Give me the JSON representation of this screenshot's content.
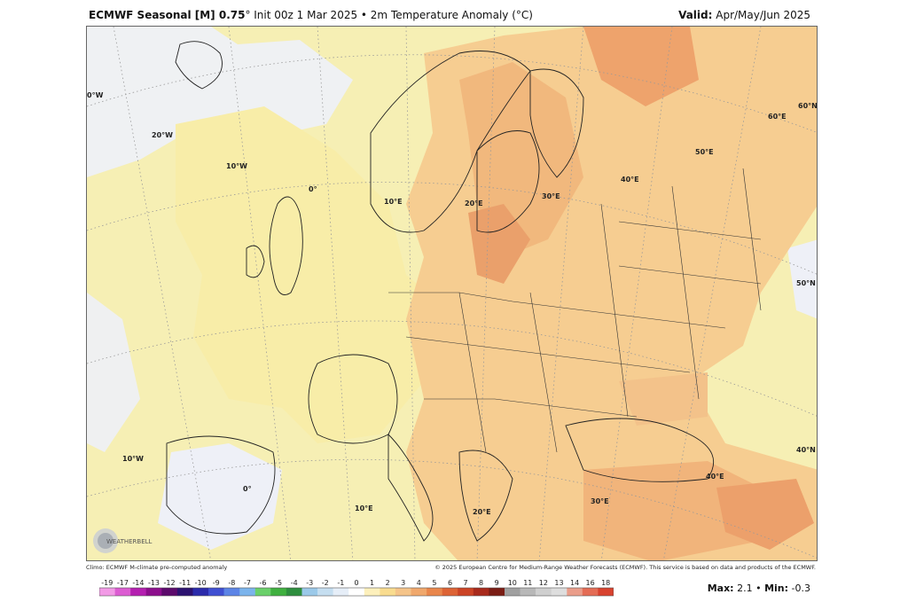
{
  "header": {
    "model": "ECMWF Seasonal [M] 0.75",
    "deg": "°",
    "init": " Init 00z 1 Mar 2025 • 2m Temperature Anomaly (°C)",
    "valid_label": "Valid:",
    "valid_value": " Apr/May/Jun 2025"
  },
  "map": {
    "gridline_labels": {
      "lon": [
        "0°W",
        "20°W",
        "10°W",
        "0°",
        "10°E",
        "20°E",
        "30°E",
        "40°E",
        "50°E",
        "60°E",
        "10°W",
        "0°",
        "10°E",
        "20°E",
        "30°E",
        "40°E"
      ],
      "lat": [
        "60°N",
        "50°N",
        "40°N"
      ]
    },
    "colors": {
      "ocean_neutral": "#f5f1c2",
      "land_warm_1": "#f7e6a8",
      "anomaly_1": "#f5c489",
      "anomaly_2": "#f0b47a",
      "anomaly_3": "#e99f67",
      "cool": "#eef0f6",
      "border": "#222222"
    }
  },
  "footer": {
    "climo": "Climo: ECMWF M-climate pre-computed anomaly",
    "copyright": "© 2025 European Centre for Medium-Range Weather Forecasts (ECMWF). This service is based on data and products of the ECMWF."
  },
  "colorbar": {
    "labels": [
      "-19",
      "-17",
      "-14",
      "-13",
      "-12",
      "-11",
      "-10",
      "-9",
      "-8",
      "-7",
      "-6",
      "-5",
      "-4",
      "-3",
      "-2",
      "-1",
      "0",
      "1",
      "2",
      "3",
      "4",
      "5",
      "6",
      "7",
      "8",
      "9",
      "10",
      "11",
      "12",
      "13",
      "14",
      "16",
      "18"
    ],
    "colors": [
      "#f29ae6",
      "#dc5cd2",
      "#b41fb0",
      "#8c0e8c",
      "#5c0a6c",
      "#2c1270",
      "#2b2bab",
      "#3f4fd2",
      "#5c84e6",
      "#7bb4ec",
      "#6ad06a",
      "#3fb03f",
      "#2e8e3e",
      "#9bc9e9",
      "#c5def0",
      "#e6eef8",
      "#ffffff",
      "#fdf0bc",
      "#f9dc8f",
      "#f5c489",
      "#f0a86c",
      "#e9864b",
      "#dd6335",
      "#cb4325",
      "#a82a1c",
      "#7a1d14",
      "#a0a0a0",
      "#b8b8b8",
      "#cfcfcf",
      "#dedede",
      "#ea9d8a",
      "#e46c55",
      "#d8422f"
    ]
  },
  "stats": {
    "max_label": "Max:",
    "max_value": " 2.1",
    "sep": " • ",
    "min_label": "Min:",
    "min_value": " -0.3"
  },
  "logo": {
    "text": "WEATHERBELL"
  }
}
